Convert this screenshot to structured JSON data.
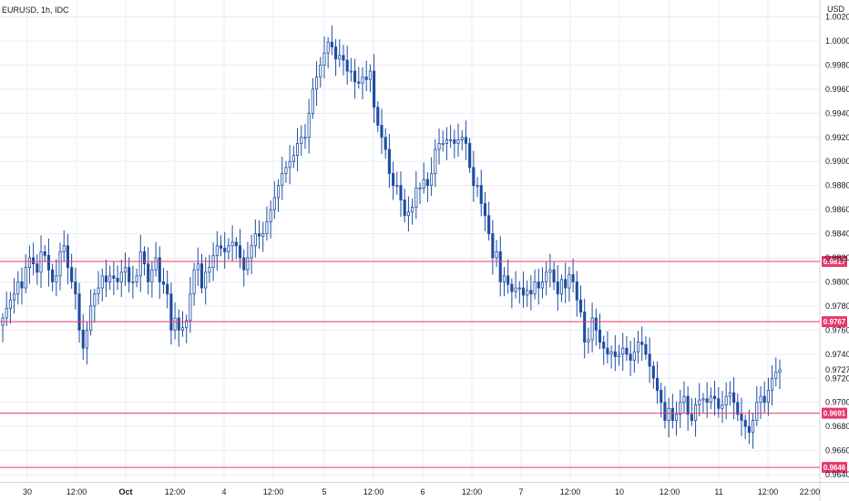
{
  "symbol": "EURUSD, 1h, IDC",
  "currency": "USD",
  "colors": {
    "up_body": "#ffffff",
    "up_border": "#1e4da1",
    "down_body": "#1e4da1",
    "grid": "#e9ecf2",
    "level_line": "#e8386a",
    "level_badge": "#e8386a"
  },
  "chart_data": {
    "type": "candlestick",
    "ylim": [
      0.9634,
      1.0034
    ],
    "y_ticks": [
      "1.0020",
      "1.0000",
      "0.9980",
      "0.9960",
      "0.9940",
      "0.9920",
      "0.9900",
      "0.9880",
      "0.9860",
      "0.9840",
      "0.9820",
      "0.9800",
      "0.9780",
      "0.9760",
      "0.9740",
      "0.9720",
      "0.9700",
      "0.9680",
      "0.9660",
      "0.9640"
    ],
    "x_ticks": [
      "30",
      "12:00",
      "Oct",
      "12:00",
      "4",
      "12:00",
      "5",
      "12:00",
      "6",
      "12:00",
      "7",
      "12:00",
      "10",
      "12:00",
      "11",
      "12:00",
      "22:00"
    ],
    "x_ticks_bold": [
      "Oct"
    ],
    "levels": [
      0.9817,
      0.9767,
      0.9691,
      0.9646
    ],
    "level_labels": [
      "0.9817",
      "0.9767",
      "0.9691",
      "0.9646"
    ],
    "last_price": 0.9727,
    "last_price_label": "0.9727",
    "closes": [
      0.977,
      0.9778,
      0.9785,
      0.979,
      0.98,
      0.9795,
      0.9812,
      0.982,
      0.9815,
      0.9808,
      0.9825,
      0.9822,
      0.981,
      0.98,
      0.9805,
      0.9825,
      0.983,
      0.9812,
      0.98,
      0.979,
      0.976,
      0.9745,
      0.976,
      0.978,
      0.979,
      0.9795,
      0.9805,
      0.98,
      0.9805,
      0.9803,
      0.98,
      0.9808,
      0.9812,
      0.98,
      0.98,
      0.9805,
      0.9825,
      0.9815,
      0.98,
      0.981,
      0.982,
      0.98,
      0.9798,
      0.979,
      0.976,
      0.977,
      0.976,
      0.9762,
      0.9768,
      0.979,
      0.981,
      0.9815,
      0.9795,
      0.9808,
      0.9812,
      0.9822,
      0.983,
      0.9828,
      0.9825,
      0.983,
      0.9833,
      0.983,
      0.982,
      0.981,
      0.982,
      0.983,
      0.984,
      0.9838,
      0.984,
      0.985,
      0.986,
      0.987,
      0.988,
      0.989,
      0.9895,
      0.99,
      0.9905,
      0.9915,
      0.992,
      0.992,
      0.994,
      0.996,
      0.997,
      0.998,
      0.999,
      0.9999,
      0.9995,
      0.9985,
      0.9988,
      0.9984,
      0.9975,
      0.9975,
      0.9966,
      0.9965,
      0.997,
      0.9968,
      0.9975,
      0.9945,
      0.993,
      0.992,
      0.991,
      0.989,
      0.988,
      0.988,
      0.9868,
      0.9855,
      0.9858,
      0.9862,
      0.9878,
      0.9878,
      0.9885,
      0.988,
      0.989,
      0.991,
      0.9915,
      0.9915,
      0.9918,
      0.9918,
      0.9915,
      0.9918,
      0.992,
      0.9915,
      0.9895,
      0.988,
      0.988,
      0.9865,
      0.9855,
      0.984,
      0.982,
      0.9825,
      0.98,
      0.9805,
      0.9798,
      0.9792,
      0.9795,
      0.9795,
      0.9789,
      0.9793,
      0.979,
      0.98,
      0.9795,
      0.98,
      0.9808,
      0.981,
      0.98,
      0.979,
      0.9802,
      0.9795,
      0.9806,
      0.98,
      0.9785,
      0.9775,
      0.975,
      0.9752,
      0.977,
      0.976,
      0.975,
      0.9745,
      0.974,
      0.9742,
      0.9738,
      0.974,
      0.9745,
      0.974,
      0.9735,
      0.9742,
      0.975,
      0.9748,
      0.974,
      0.973,
      0.972,
      0.971,
      0.97,
      0.9685,
      0.9695,
      0.9685,
      0.969,
      0.97,
      0.9705,
      0.969,
      0.9685,
      0.9698,
      0.9702,
      0.9703,
      0.97,
      0.9705,
      0.9703,
      0.9695,
      0.9698,
      0.9705,
      0.9708,
      0.97,
      0.969,
      0.9685,
      0.968,
      0.9675,
      0.9685,
      0.97,
      0.9705,
      0.97,
      0.971,
      0.972,
      0.9725,
      0.9727
    ]
  }
}
